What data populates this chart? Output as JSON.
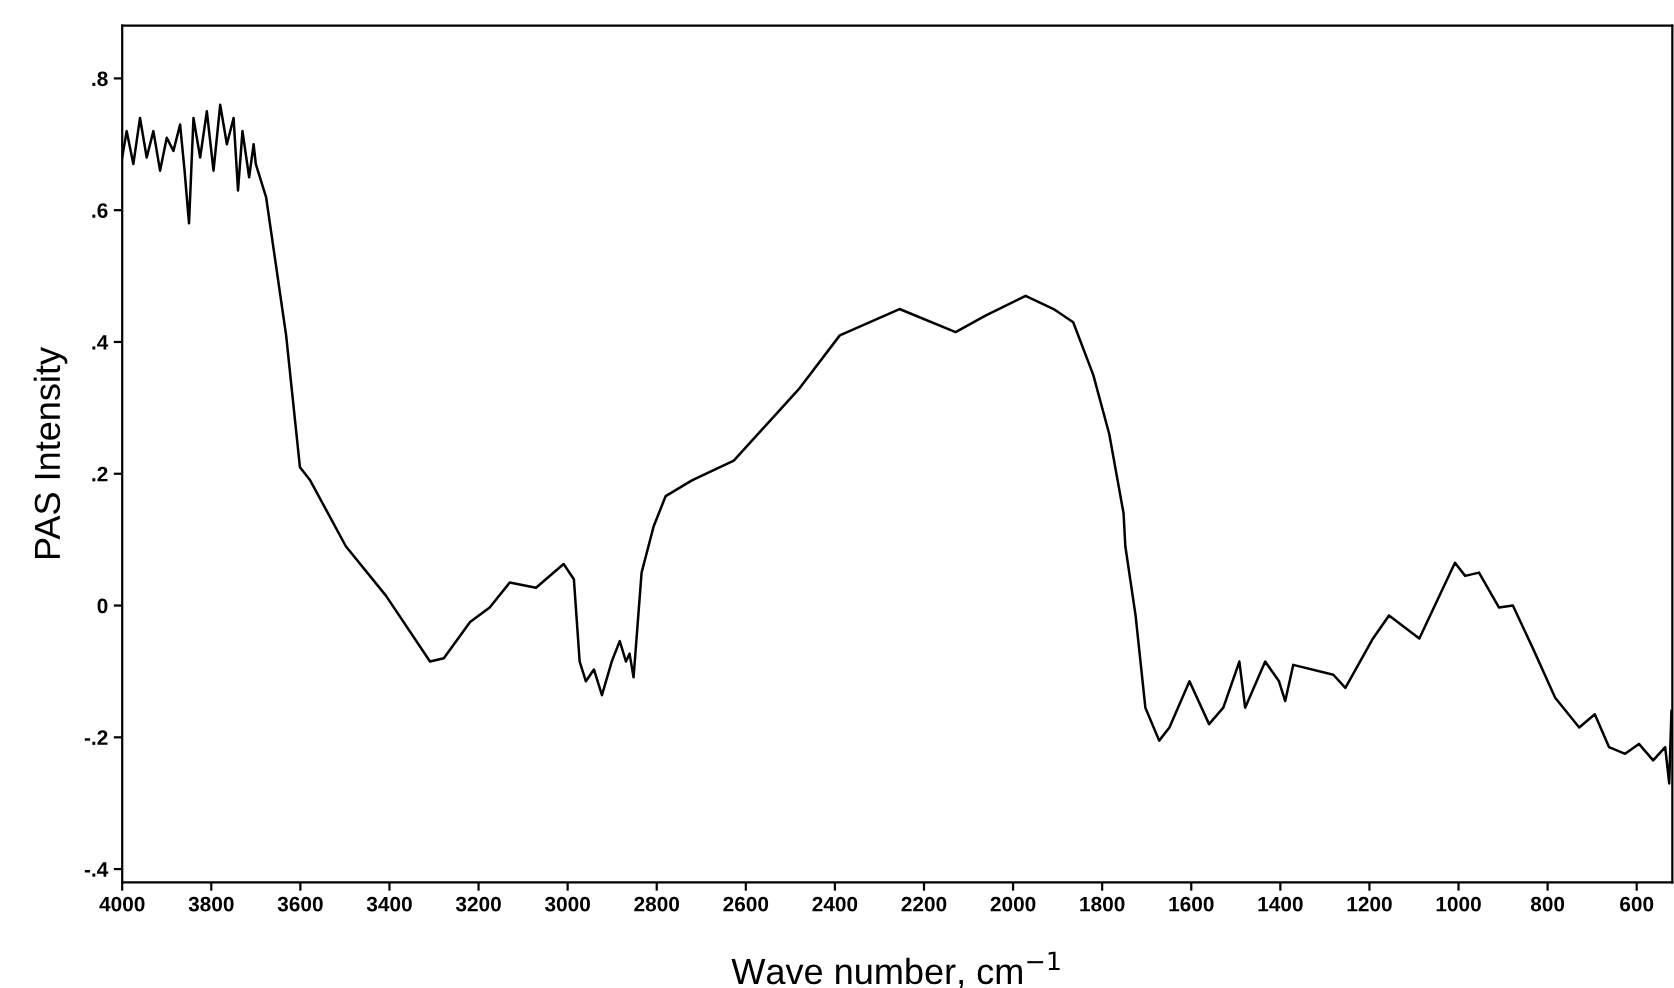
{
  "chart_data": {
    "type": "line",
    "xlabel": "Wave number, cm$^{−1}$",
    "ylabel": "PAS Intensity",
    "x": [
      4000,
      3990,
      3975,
      3960,
      3945,
      3930,
      3915,
      3900,
      3885,
      3870,
      3860,
      3850,
      3840,
      3825,
      3810,
      3795,
      3780,
      3765,
      3750,
      3740,
      3730,
      3715,
      3705,
      3700,
      3677,
      3632,
      3601,
      3578,
      3498,
      3408,
      3309,
      3278,
      3219,
      3175,
      3130,
      3071,
      3009,
      2986,
      2973,
      2959,
      2941,
      2923,
      2901,
      2883,
      2869,
      2861,
      2852,
      2834,
      2807,
      2780,
      2721,
      2627,
      2479,
      2389,
      2255,
      2129,
      2062,
      1972,
      1909,
      1865,
      1820,
      1784,
      1752,
      1748,
      1725,
      1703,
      1672,
      1649,
      1604,
      1560,
      1528,
      1492,
      1479,
      1434,
      1403,
      1389,
      1371,
      1281,
      1254,
      1192,
      1156,
      1088,
      1008,
      985,
      954,
      909,
      878,
      833,
      783,
      729,
      694,
      662,
      626,
      595,
      563,
      536,
      527,
      522
    ],
    "series": [
      {
        "color": "#000000",
        "values": [
          0.68,
          0.72,
          0.67,
          0.74,
          0.68,
          0.72,
          0.66,
          0.71,
          0.69,
          0.73,
          0.66,
          0.58,
          0.74,
          0.68,
          0.75,
          0.66,
          0.76,
          0.7,
          0.74,
          0.63,
          0.72,
          0.65,
          0.7,
          0.67,
          0.62,
          0.41,
          0.21,
          0.19,
          0.09,
          0.015,
          -0.085,
          -0.08,
          -0.025,
          -0.003,
          0.035,
          0.027,
          0.063,
          0.04,
          -0.085,
          -0.115,
          -0.097,
          -0.136,
          -0.085,
          -0.054,
          -0.085,
          -0.073,
          -0.109,
          0.05,
          0.12,
          0.166,
          0.19,
          0.22,
          0.33,
          0.41,
          0.45,
          0.415,
          0.44,
          0.47,
          0.45,
          0.43,
          0.35,
          0.26,
          0.14,
          0.09,
          -0.015,
          -0.155,
          -0.205,
          -0.185,
          -0.115,
          -0.18,
          -0.155,
          -0.085,
          -0.155,
          -0.085,
          -0.115,
          -0.145,
          -0.09,
          -0.105,
          -0.125,
          -0.05,
          -0.015,
          -0.05,
          0.065,
          0.045,
          0.05,
          -0.003,
          0,
          -0.065,
          -0.14,
          -0.185,
          -0.165,
          -0.215,
          -0.225,
          -0.21,
          -0.235,
          -0.215,
          -0.27,
          -0.16
        ]
      }
    ],
    "xlim": [
      4000,
      520
    ],
    "xticks": [
      4000,
      3800,
      3600,
      3400,
      3200,
      3000,
      2800,
      2600,
      2400,
      2200,
      2000,
      1800,
      1600,
      1400,
      1200,
      1000,
      800,
      600
    ],
    "ylim": [
      -0.42,
      0.88
    ],
    "yticks": [
      {
        "value": 0.8,
        "label": ".8"
      },
      {
        "value": 0.6,
        "label": ".6"
      },
      {
        "value": 0.4,
        "label": ".4"
      },
      {
        "value": 0.2,
        "label": ".2"
      },
      0,
      {
        "value": -0.2,
        "label": "-.2"
      },
      {
        "value": -0.4,
        "label": "-.4"
      }
    ],
    "grid": false,
    "legend": false
  }
}
